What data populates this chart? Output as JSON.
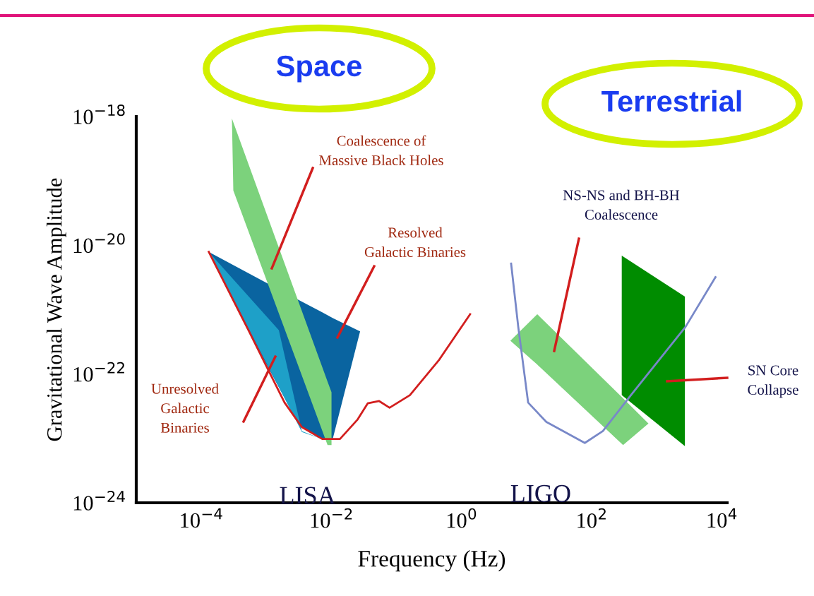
{
  "chart_data": {
    "type": "area",
    "xlabel": "Frequency (Hz)",
    "ylabel": "Gravitational Wave Amplitude",
    "log": "xy",
    "grid": false,
    "legend": false,
    "xlim": [
      1e-05,
      12000.0
    ],
    "ylim": [
      1e-24,
      1e-18
    ],
    "xticks": [
      {
        "value": 0.0001,
        "label": "10$^{−4}$"
      },
      {
        "value": 0.01,
        "label": "10$^{−2}$"
      },
      {
        "value": 1,
        "label": "10$^{0}$"
      },
      {
        "value": 100,
        "label": "10$^{2}$"
      },
      {
        "value": 10000.0,
        "label": "10$^{4}$"
      }
    ],
    "yticks": [
      {
        "value": 1e-24,
        "label": "10$^{−24}$"
      },
      {
        "value": 1e-22,
        "label": "10$^{−22}$"
      },
      {
        "value": 1e-20,
        "label": "10$^{−20}$"
      },
      {
        "value": 1e-18,
        "label": "10$^{−18}$"
      }
    ],
    "series": [
      {
        "color": "#0a64a0",
        "x": [
          0.00013,
          0.00091,
          0.0032,
          0.0072,
          0.0105,
          0.0275
        ],
        "values": [
          null,
          null,
          null,
          null,
          null,
          null
        ],
        "upper": [
          7.9e-21,
          2.75e-21,
          1.4e-21,
          9.1e-22,
          7.4e-22,
          4.6e-22
        ],
        "lower": [
          7.9e-21,
          1.7e-22,
          1.6e-23,
          9.8e-24,
          1e-23,
          4.6e-22
        ]
      },
      {
        "color": "#1ea0c8",
        "x": [
          0.00013,
          0.00155,
          0.0035,
          0.0072
        ],
        "values": [
          null,
          null,
          null,
          null
        ],
        "upper": [
          7.9e-21,
          4.8e-22,
          1.3e-23,
          9.8e-24
        ],
        "lower": [
          7.9e-21,
          6.3e-23,
          1.26e-23,
          9.8e-24
        ]
      },
      {
        "type": "line",
        "name": "LISA",
        "color": "#d21e1e",
        "x": [
          0.00013,
          0.00054,
          0.0019,
          0.0035,
          0.0072,
          0.0135,
          0.025,
          0.036,
          0.054,
          0.078,
          0.16,
          0.45,
          1.35
        ],
        "values": [
          7.9e-21,
          4.6e-22,
          3.6e-23,
          1.5e-23,
          9.8e-24,
          9.8e-24,
          1.95e-23,
          3.5e-23,
          3.8e-23,
          3e-23,
          4.7e-23,
          1.66e-22,
          8.5e-22
        ]
      },
      {
        "color": "#7cd27c",
        "x": [
          0.000295,
          0.00031,
          0.0087,
          0.01
        ],
        "values": [
          null,
          null,
          null,
          null
        ],
        "upper": [
          9.3e-19,
          8.1e-19,
          7.6e-23,
          5.2e-23
        ],
        "lower": [
          9.3e-19,
          7.1e-20,
          7.9e-24,
          7.9e-24
        ]
      },
      {
        "color": "#008c00",
        "x": [
          288,
          2690
        ],
        "values": [
          null,
          null
        ],
        "upper": [
          6.9e-21,
          1.6e-21
        ],
        "lower": [
          4.7e-23,
          7.6e-24
        ]
      },
      {
        "color": "#7cd27c",
        "x": [
          5.6,
          14.5,
          302,
          741
        ],
        "values": [
          null,
          null,
          null,
          null
        ],
        "upper": [
          3.3e-22,
          8.5e-22,
          4.2e-23,
          1.7e-23
        ],
        "lower": [
          3.3e-22,
          1.4e-22,
          7.9e-24,
          1.7e-23
        ]
      },
      {
        "type": "line",
        "name": "LIGO",
        "color": "#7888c8",
        "x": [
          5.75,
          7.4,
          10.5,
          20,
          78,
          148,
          398,
          2750,
          7940
        ],
        "values": [
          5.2e-21,
          5.4e-22,
          3.6e-23,
          1.8e-23,
          8.5e-24,
          1.3e-23,
          4.7e-23,
          5.4e-22,
          3.2e-21
        ]
      }
    ],
    "annotations": [
      "Coalescence of\nMassive Black Holes",
      "Resolved\nGalactic Binaries",
      "Unresolved\nGalactic\nBinaries",
      "NS-NS and BH-BH\nCoalescence",
      "SN Core\nCollapse",
      "Space",
      "Terrestrial"
    ]
  }
}
